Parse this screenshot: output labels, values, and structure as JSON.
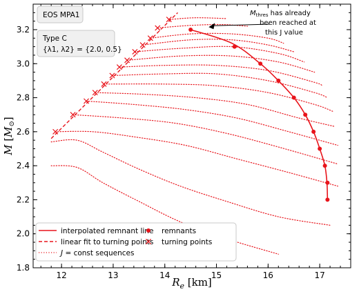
{
  "chart_data": {
    "type": "line",
    "xlabel": "R_e [km]",
    "ylabel": "M [M_⊙]",
    "xlim": [
      11.45,
      17.6
    ],
    "ylim": [
      1.8,
      3.35
    ],
    "xticks": [
      12,
      13,
      14,
      15,
      16,
      17
    ],
    "yticks": [
      1.8,
      2.0,
      2.2,
      2.4,
      2.6,
      2.8,
      3.0,
      3.2
    ],
    "grid": false,
    "colors": {
      "main": "#e8141b",
      "box_bg": "#f0f0f0",
      "box_edge": "#c8c8c8"
    },
    "info_box": {
      "eos": "EOS MPA1",
      "type": "Type C",
      "params": "{λ1, λ2} = {2.0, 0.5}"
    },
    "annotation": {
      "lines": [
        "has already",
        "been reached at",
        "this J value"
      ],
      "symbol": "M",
      "subscript": "thres",
      "italic_var": "J",
      "arrow_to": [
        14.85,
        3.215
      ]
    },
    "legend": {
      "placement": "lower-left",
      "entries": [
        {
          "label": "interpolated remnant line",
          "style": "solid-line"
        },
        {
          "label": "remnants",
          "style": "dot"
        },
        {
          "label": "linear fit to turning points",
          "style": "dashed-line"
        },
        {
          "label": "turning points",
          "style": "x-marker"
        },
        {
          "label": "J = const sequences",
          "style": "dotted-line"
        }
      ]
    },
    "series": [
      {
        "name": "interpolated remnant line",
        "points": [
          [
            14.5,
            3.2
          ],
          [
            15.3,
            3.12
          ],
          [
            15.85,
            3.0
          ],
          [
            16.2,
            2.9
          ],
          [
            16.5,
            2.8
          ],
          [
            16.72,
            2.7
          ],
          [
            16.88,
            2.6
          ],
          [
            17.0,
            2.5
          ],
          [
            17.1,
            2.4
          ],
          [
            17.14,
            2.3
          ],
          [
            17.15,
            2.2
          ]
        ]
      },
      {
        "name": "remnants",
        "points": [
          [
            14.5,
            3.2
          ],
          [
            15.35,
            3.1
          ],
          [
            15.85,
            3.0
          ],
          [
            16.2,
            2.9
          ],
          [
            16.5,
            2.8
          ],
          [
            16.72,
            2.7
          ],
          [
            16.88,
            2.6
          ],
          [
            17.0,
            2.5
          ],
          [
            17.1,
            2.4
          ],
          [
            17.15,
            2.3
          ],
          [
            17.15,
            2.2
          ]
        ]
      },
      {
        "name": "turning points",
        "points": [
          [
            11.88,
            2.6
          ],
          [
            12.22,
            2.7
          ],
          [
            12.48,
            2.78
          ],
          [
            12.65,
            2.83
          ],
          [
            12.82,
            2.88
          ],
          [
            12.98,
            2.93
          ],
          [
            13.12,
            2.98
          ],
          [
            13.27,
            3.02
          ],
          [
            13.42,
            3.07
          ],
          [
            13.57,
            3.11
          ],
          [
            13.72,
            3.15
          ],
          [
            13.86,
            3.21
          ],
          [
            14.08,
            3.26
          ]
        ]
      },
      {
        "name": "linear fit to turning points",
        "points": [
          [
            11.8,
            2.56
          ],
          [
            14.25,
            3.3
          ]
        ]
      },
      {
        "name": "J = const sequences",
        "curves": [
          [
            [
              14.1,
              3.26
            ],
            [
              14.6,
              3.27
            ],
            [
              15.2,
              3.265
            ]
          ],
          [
            [
              13.86,
              3.21
            ],
            [
              14.5,
              3.225
            ],
            [
              15.1,
              3.23
            ],
            [
              15.6,
              3.22
            ]
          ],
          [
            [
              13.72,
              3.15
            ],
            [
              14.5,
              3.175
            ],
            [
              15.3,
              3.175
            ],
            [
              16.0,
              3.15
            ],
            [
              16.3,
              3.12
            ]
          ],
          [
            [
              13.57,
              3.11
            ],
            [
              14.5,
              3.14
            ],
            [
              15.3,
              3.14
            ],
            [
              16.0,
              3.11
            ],
            [
              16.5,
              3.07
            ]
          ],
          [
            [
              13.42,
              3.07
            ],
            [
              14.3,
              3.09
            ],
            [
              15.3,
              3.1
            ],
            [
              16.2,
              3.06
            ],
            [
              16.7,
              3.01
            ]
          ],
          [
            [
              13.27,
              3.02
            ],
            [
              14.3,
              3.045
            ],
            [
              15.3,
              3.045
            ],
            [
              16.2,
              3.01
            ],
            [
              16.9,
              2.95
            ]
          ],
          [
            [
              13.12,
              2.98
            ],
            [
              14.0,
              2.99
            ],
            [
              15.0,
              2.99
            ],
            [
              16.0,
              2.96
            ],
            [
              16.9,
              2.89
            ],
            [
              17.05,
              2.87
            ]
          ],
          [
            [
              12.98,
              2.93
            ],
            [
              14.0,
              2.94
            ],
            [
              15.0,
              2.94
            ],
            [
              16.0,
              2.9
            ],
            [
              16.9,
              2.83
            ],
            [
              17.15,
              2.8
            ]
          ],
          [
            [
              12.82,
              2.88
            ],
            [
              14.0,
              2.88
            ],
            [
              15.0,
              2.87
            ],
            [
              16.0,
              2.83
            ],
            [
              16.9,
              2.76
            ],
            [
              17.25,
              2.72
            ]
          ],
          [
            [
              12.65,
              2.83
            ],
            [
              13.6,
              2.82
            ],
            [
              14.6,
              2.8
            ],
            [
              15.6,
              2.76
            ],
            [
              16.6,
              2.68
            ],
            [
              17.3,
              2.63
            ]
          ],
          [
            [
              12.48,
              2.78
            ],
            [
              13.4,
              2.76
            ],
            [
              14.4,
              2.73
            ],
            [
              15.4,
              2.68
            ],
            [
              16.4,
              2.6
            ],
            [
              17.35,
              2.52
            ]
          ],
          [
            [
              12.22,
              2.7
            ],
            [
              13.2,
              2.68
            ],
            [
              14.2,
              2.65
            ],
            [
              15.2,
              2.59
            ],
            [
              16.2,
              2.51
            ],
            [
              17.35,
              2.41
            ]
          ],
          [
            [
              11.88,
              2.6
            ],
            [
              12.6,
              2.6
            ],
            [
              13.4,
              2.57
            ],
            [
              14.4,
              2.52
            ],
            [
              15.4,
              2.44
            ],
            [
              16.4,
              2.36
            ],
            [
              17.35,
              2.28
            ]
          ],
          [
            [
              11.8,
              2.54
            ],
            [
              12.3,
              2.55
            ],
            [
              12.8,
              2.48
            ],
            [
              13.5,
              2.38
            ],
            [
              14.3,
              2.28
            ],
            [
              15.2,
              2.19
            ],
            [
              16.2,
              2.1
            ],
            [
              17.2,
              2.05
            ]
          ],
          [
            [
              11.8,
              2.4
            ],
            [
              12.3,
              2.39
            ],
            [
              12.8,
              2.3
            ],
            [
              13.5,
              2.19
            ],
            [
              14.3,
              2.07
            ],
            [
              15.2,
              1.97
            ],
            [
              16.2,
              1.88
            ]
          ]
        ]
      }
    ]
  }
}
